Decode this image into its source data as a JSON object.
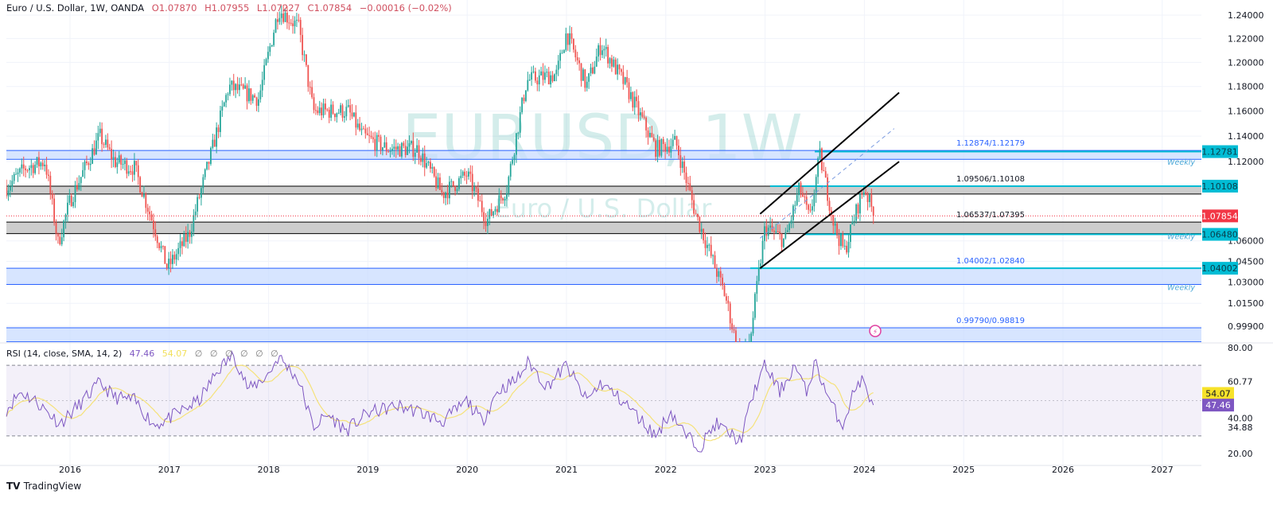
{
  "header": {
    "symbol": "Euro / U.S. Dollar, 1W, OANDA",
    "open": "O1.07870",
    "high": "H1.07955",
    "low": "L1.07227",
    "close": "C1.07854",
    "change": "−0.00016 (−0.02%)"
  },
  "watermark": {
    "ticker": "EURUSD, 1W",
    "name": "Euro / U.S. Dollar"
  },
  "rsi_header": {
    "label": "RSI (14, close, SMA, 14, 2)",
    "rsi": "47.46",
    "sma": "54.07",
    "extra": "∅ ∅ ∅ ∅ ∅ ∅"
  },
  "branding": {
    "logo": "TradingView"
  },
  "colors": {
    "up": "#26a69a",
    "down": "#ef5350",
    "zone_blue": "#c9dcff",
    "zone_grey": "#c8c8c8",
    "level_teal": "#00bcd4",
    "rsi": "#7e57c2",
    "rsi_sma": "#f5e27a",
    "last_price": "#f23645"
  },
  "chart_data": [
    {
      "type": "candlestick",
      "title": "Euro / U.S. Dollar, 1W, OANDA",
      "scale": "log",
      "ylim": [
        0.985,
        1.245
      ],
      "xlim": [
        2015.36,
        2027.4
      ],
      "y_ticks": [
        "1.24000",
        "1.22000",
        "1.20000",
        "1.18000",
        "1.16000",
        "1.14000",
        "1.12000",
        "1.06000",
        "1.04500",
        "1.03000",
        "1.01500",
        "0.99900"
      ],
      "x_ticks": [
        "2016",
        "2017",
        "2018",
        "2019",
        "2020",
        "2021",
        "2022",
        "2023",
        "2024",
        "2025",
        "2026",
        "2027"
      ],
      "last_price": "1.07854",
      "price_path": [
        [
          2015.36,
          1.1
        ],
        [
          2015.55,
          1.115
        ],
        [
          2015.75,
          1.12
        ],
        [
          2015.88,
          1.058
        ],
        [
          2016.0,
          1.09
        ],
        [
          2016.3,
          1.14
        ],
        [
          2016.45,
          1.12
        ],
        [
          2016.65,
          1.115
        ],
        [
          2016.85,
          1.07
        ],
        [
          2016.98,
          1.04
        ],
        [
          2017.2,
          1.065
        ],
        [
          2017.4,
          1.12
        ],
        [
          2017.6,
          1.18
        ],
        [
          2017.75,
          1.175
        ],
        [
          2017.9,
          1.17
        ],
        [
          2018.1,
          1.245
        ],
        [
          2018.3,
          1.23
        ],
        [
          2018.45,
          1.16
        ],
        [
          2018.8,
          1.16
        ],
        [
          2018.95,
          1.14
        ],
        [
          2019.2,
          1.13
        ],
        [
          2019.5,
          1.13
        ],
        [
          2019.75,
          1.095
        ],
        [
          2020.0,
          1.11
        ],
        [
          2020.2,
          1.075
        ],
        [
          2020.4,
          1.1
        ],
        [
          2020.6,
          1.185
        ],
        [
          2020.9,
          1.19
        ],
        [
          2021.0,
          1.225
        ],
        [
          2021.2,
          1.18
        ],
        [
          2021.35,
          1.215
        ],
        [
          2021.6,
          1.18
        ],
        [
          2021.9,
          1.13
        ],
        [
          2022.1,
          1.135
        ],
        [
          2022.3,
          1.08
        ],
        [
          2022.45,
          1.05
        ],
        [
          2022.6,
          1.02
        ],
        [
          2022.75,
          0.975
        ],
        [
          2022.85,
          0.99
        ],
        [
          2023.0,
          1.07
        ],
        [
          2023.2,
          1.06
        ],
        [
          2023.35,
          1.1
        ],
        [
          2023.45,
          1.075
        ],
        [
          2023.55,
          1.125
        ],
        [
          2023.7,
          1.07
        ],
        [
          2023.8,
          1.052
        ],
        [
          2023.95,
          1.09
        ],
        [
          2024.0,
          1.1
        ],
        [
          2024.1,
          1.07854
        ]
      ],
      "zones": [
        {
          "label": "1.12874/1.12179",
          "top": 1.12874,
          "bottom": 1.12179,
          "color": "#c9dcff",
          "note": "Weekly"
        },
        {
          "label": "1.09506/1.10108",
          "top": 1.10108,
          "bottom": 1.09506,
          "color": "#c8c8c8"
        },
        {
          "label": "1.06537/1.07395",
          "top": 1.07395,
          "bottom": 1.06537,
          "color": "#c8c8c8",
          "note": "Weekly"
        },
        {
          "label": "1.04002/1.02840",
          "top": 1.04002,
          "bottom": 1.0284,
          "color": "#c9dcff",
          "note": "Weekly"
        },
        {
          "label": "0.99790/0.98819",
          "top": 0.9979,
          "bottom": 0.98819,
          "color": "#c9dcff"
        }
      ],
      "levels": [
        {
          "value": 1.12781,
          "label": "1.12781",
          "from": 2023.5
        },
        {
          "value": 1.10108,
          "label": "1.10108",
          "from": 2023.05
        },
        {
          "value": 1.0648,
          "label": "1.06480",
          "from": 2023.4
        },
        {
          "value": 1.04002,
          "label": "1.04002",
          "from": 2022.85
        }
      ],
      "trendlines": [
        {
          "from": [
            2022.95,
            1.08
          ],
          "to": [
            2024.35,
            1.175
          ],
          "style": "solid"
        },
        {
          "from": [
            2022.95,
            1.04
          ],
          "to": [
            2024.35,
            1.12
          ],
          "style": "solid"
        },
        {
          "from": [
            2022.95,
            1.062
          ],
          "to": [
            2024.3,
            1.146
          ],
          "style": "dashed"
        }
      ]
    },
    {
      "type": "line",
      "title": "RSI (14, close, SMA, 14, 2)",
      "ylim": [
        17,
        82
      ],
      "y_ticks": [
        "80.00",
        "60.77",
        "40.00",
        "34.88",
        "20.00"
      ],
      "bands": [
        30,
        50,
        70
      ],
      "series": [
        {
          "name": "RSI",
          "last": "47.46",
          "points": [
            [
              2015.36,
              45
            ],
            [
              2015.5,
              55
            ],
            [
              2015.65,
              50
            ],
            [
              2015.9,
              37
            ],
            [
              2016.1,
              48
            ],
            [
              2016.3,
              60
            ],
            [
              2016.45,
              52
            ],
            [
              2016.65,
              50
            ],
            [
              2016.85,
              36
            ],
            [
              2017.0,
              40
            ],
            [
              2017.3,
              50
            ],
            [
              2017.5,
              68
            ],
            [
              2017.65,
              76
            ],
            [
              2017.8,
              56
            ],
            [
              2018.0,
              65
            ],
            [
              2018.1,
              75
            ],
            [
              2018.3,
              62
            ],
            [
              2018.45,
              35
            ],
            [
              2018.6,
              42
            ],
            [
              2018.78,
              33
            ],
            [
              2019.0,
              43
            ],
            [
              2019.3,
              47
            ],
            [
              2019.5,
              44
            ],
            [
              2019.75,
              38
            ],
            [
              2020.0,
              50
            ],
            [
              2020.15,
              38
            ],
            [
              2020.3,
              55
            ],
            [
              2020.5,
              62
            ],
            [
              2020.62,
              72
            ],
            [
              2020.8,
              58
            ],
            [
              2021.0,
              70
            ],
            [
              2021.2,
              50
            ],
            [
              2021.35,
              60
            ],
            [
              2021.6,
              48
            ],
            [
              2021.9,
              30
            ],
            [
              2022.05,
              44
            ],
            [
              2022.2,
              30
            ],
            [
              2022.35,
              24
            ],
            [
              2022.5,
              37
            ],
            [
              2022.75,
              27
            ],
            [
              2022.9,
              57
            ],
            [
              2023.0,
              70
            ],
            [
              2023.15,
              55
            ],
            [
              2023.3,
              70
            ],
            [
              2023.42,
              54
            ],
            [
              2023.5,
              72
            ],
            [
              2023.65,
              50
            ],
            [
              2023.78,
              36
            ],
            [
              2023.9,
              56
            ],
            [
              2023.97,
              62
            ],
            [
              2024.04,
              54
            ],
            [
              2024.1,
              47.46
            ]
          ]
        },
        {
          "name": "SMA",
          "last": "54.07"
        }
      ]
    }
  ]
}
